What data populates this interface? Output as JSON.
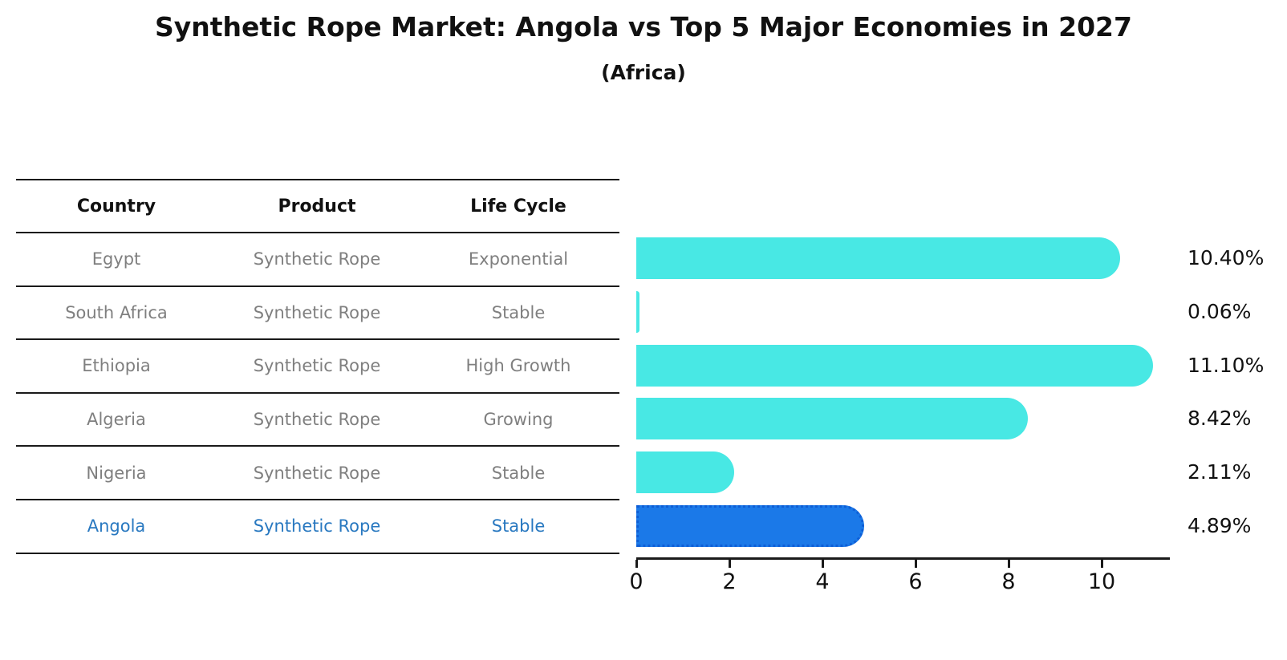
{
  "header": {
    "title": "Synthetic Rope Market: Angola vs Top 5 Major Economies in 2027",
    "subtitle": "(Africa)"
  },
  "table": {
    "columns": [
      "Country",
      "Product",
      "Life Cycle"
    ],
    "rows": [
      {
        "country": "Egypt",
        "product": "Synthetic Rope",
        "life_cycle": "Exponential",
        "highlight": false
      },
      {
        "country": "South Africa",
        "product": "Synthetic Rope",
        "life_cycle": "Stable",
        "highlight": false
      },
      {
        "country": "Ethiopia",
        "product": "Synthetic Rope",
        "life_cycle": "High Growth",
        "highlight": false
      },
      {
        "country": "Algeria",
        "product": "Synthetic Rope",
        "life_cycle": "Growing",
        "highlight": false
      },
      {
        "country": "Nigeria",
        "product": "Synthetic Rope",
        "life_cycle": "Stable",
        "highlight": true
      }
    ],
    "highlight_row": {
      "country": "Angola",
      "product": "Synthetic Rope",
      "life_cycle": "Stable"
    }
  },
  "chart_data": {
    "type": "bar",
    "orientation": "horizontal",
    "title": "Synthetic Rope Market: Angola vs Top 5 Major Economies in 2027 (Africa)",
    "categories": [
      "Egypt",
      "South Africa",
      "Ethiopia",
      "Algeria",
      "Nigeria",
      "Angola"
    ],
    "values": [
      10.4,
      0.06,
      11.1,
      8.42,
      2.11,
      4.89
    ],
    "value_labels": [
      "10.40%",
      "0.06%",
      "11.10%",
      "8.42%",
      "2.11%",
      "4.89%"
    ],
    "x_ticks": [
      "0",
      "2",
      "4",
      "6",
      "8",
      "10"
    ],
    "x_tick_values": [
      0,
      2,
      4,
      6,
      8,
      10
    ],
    "xlim": [
      0,
      11.45
    ],
    "grid": false,
    "legend_position": "none",
    "highlight_index": 5,
    "bar_color": "#48e8e4",
    "highlight_bar_color": "#1b79e8",
    "highlight_border_color": "#0e5ed6",
    "highlight_text_color": "#2878c0",
    "table_text_color": "#7f7f7f",
    "axis_color": "#1a1a1a"
  }
}
